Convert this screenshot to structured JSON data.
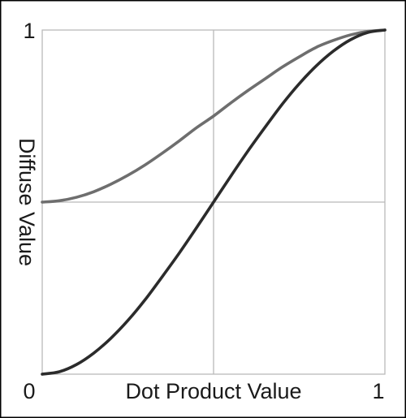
{
  "chart_data": {
    "type": "line",
    "xlabel": "Dot Product Value",
    "ylabel": "Diffuse Value",
    "xlim": [
      0,
      1
    ],
    "ylim": [
      0,
      1
    ],
    "grid": true,
    "x_ticks": [
      {
        "value": 0,
        "label": "0"
      },
      {
        "value": 1,
        "label": "1"
      }
    ],
    "y_ticks": [
      {
        "value": 1,
        "label": "1"
      }
    ],
    "series": [
      {
        "color": "#6e6e6e",
        "x": [
          0,
          0.05,
          0.1,
          0.15,
          0.2,
          0.25,
          0.3,
          0.35,
          0.4,
          0.45,
          0.5,
          0.55,
          0.6,
          0.65,
          0.7,
          0.75,
          0.8,
          0.85,
          0.9,
          0.95,
          1
        ],
        "y": [
          0.5,
          0.504,
          0.514,
          0.53,
          0.552,
          0.578,
          0.608,
          0.642,
          0.678,
          0.716,
          0.75,
          0.788,
          0.824,
          0.858,
          0.892,
          0.922,
          0.95,
          0.97,
          0.986,
          0.996,
          1
        ]
      },
      {
        "color": "#2b2b2b",
        "x": [
          0,
          0.05,
          0.1,
          0.15,
          0.2,
          0.25,
          0.3,
          0.35,
          0.4,
          0.45,
          0.5,
          0.55,
          0.6,
          0.65,
          0.7,
          0.75,
          0.8,
          0.85,
          0.9,
          0.95,
          1
        ],
        "y": [
          0,
          0.007,
          0.028,
          0.061,
          0.104,
          0.156,
          0.216,
          0.283,
          0.352,
          0.425,
          0.5,
          0.575,
          0.648,
          0.717,
          0.784,
          0.844,
          0.896,
          0.939,
          0.972,
          0.993,
          1
        ]
      }
    ]
  }
}
